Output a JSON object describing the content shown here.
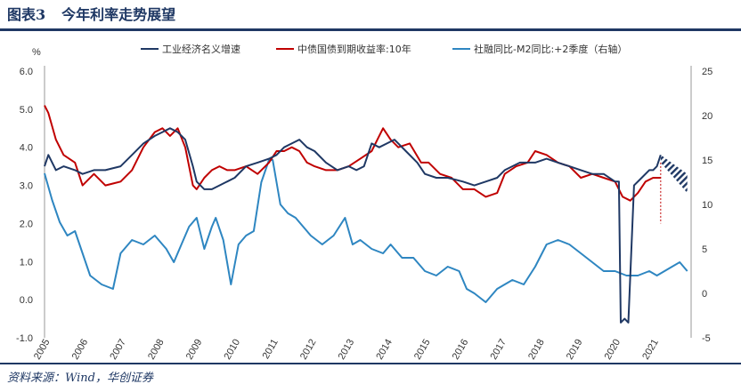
{
  "figure": {
    "number": "图表3",
    "title": "今年利率走势展望",
    "source": "资料来源：Wind，华创证券"
  },
  "colors": {
    "series1": "#1f3864",
    "series2": "#c00000",
    "series3": "#2e86c1",
    "rule": "#1f3864"
  },
  "chart_data": {
    "type": "line",
    "title": "",
    "y_left_unit": "%",
    "y_left": {
      "ylim": [
        -1.0,
        6.0
      ],
      "ticks": [
        "-1.0",
        "0.0",
        "1.0",
        "2.0",
        "3.0",
        "4.0",
        "5.0",
        "6.0"
      ]
    },
    "y_right": {
      "ylim": [
        -5,
        25
      ],
      "ticks": [
        "-5",
        "0",
        "5",
        "10",
        "15",
        "20",
        "25"
      ]
    },
    "x_ticks": [
      "2005",
      "2006",
      "2007",
      "2008",
      "2009",
      "2010",
      "2011",
      "2012",
      "2013",
      "2014",
      "2015",
      "2016",
      "2017",
      "2018",
      "2019",
      "2020",
      "2021"
    ],
    "xlim": [
      2005.0,
      2022.0
    ],
    "grid": false,
    "legend_position": "top",
    "series": [
      {
        "name": "工业经济名义增速",
        "axis": "left",
        "x": [
          2005.0,
          2005.1,
          2005.3,
          2005.5,
          2005.8,
          2006.0,
          2006.3,
          2006.6,
          2007.0,
          2007.3,
          2007.6,
          2007.9,
          2008.1,
          2008.3,
          2008.5,
          2008.7,
          2008.9,
          2009.0,
          2009.2,
          2009.4,
          2009.6,
          2009.8,
          2010.0,
          2010.3,
          2010.6,
          2010.9,
          2011.1,
          2011.3,
          2011.5,
          2011.7,
          2011.9,
          2012.1,
          2012.4,
          2012.7,
          2013.0,
          2013.2,
          2013.4,
          2013.6,
          2013.8,
          2014.0,
          2014.2,
          2014.5,
          2014.8,
          2015.0,
          2015.3,
          2015.6,
          2016.0,
          2016.3,
          2016.6,
          2016.9,
          2017.1,
          2017.5,
          2017.9,
          2018.2,
          2018.5,
          2018.8,
          2019.1,
          2019.4,
          2019.7,
          2020.0,
          2020.1,
          2020.15,
          2020.25,
          2020.35,
          2020.5,
          2020.7,
          2020.9,
          2021.0,
          2021.1,
          2021.2
        ],
        "values": [
          3.5,
          3.8,
          3.4,
          3.5,
          3.4,
          3.3,
          3.4,
          3.4,
          3.5,
          3.8,
          4.1,
          4.3,
          4.4,
          4.5,
          4.4,
          4.2,
          3.5,
          3.1,
          2.9,
          2.9,
          3.0,
          3.1,
          3.2,
          3.5,
          3.6,
          3.7,
          3.8,
          4.0,
          4.1,
          4.2,
          4.0,
          3.9,
          3.6,
          3.4,
          3.5,
          3.4,
          3.5,
          4.1,
          4.0,
          4.1,
          4.2,
          3.9,
          3.6,
          3.3,
          3.2,
          3.2,
          3.1,
          3.0,
          3.1,
          3.2,
          3.4,
          3.6,
          3.6,
          3.7,
          3.6,
          3.5,
          3.4,
          3.3,
          3.3,
          3.1,
          3.1,
          -0.6,
          -0.5,
          -0.6,
          3.0,
          3.2,
          3.4,
          3.4,
          3.5,
          3.8
        ]
      },
      {
        "name": "中债国债到期收益率:10年",
        "axis": "left",
        "x": [
          2005.0,
          2005.1,
          2005.3,
          2005.5,
          2005.8,
          2006.0,
          2006.3,
          2006.6,
          2007.0,
          2007.3,
          2007.6,
          2007.9,
          2008.1,
          2008.3,
          2008.5,
          2008.7,
          2008.9,
          2009.0,
          2009.2,
          2009.4,
          2009.6,
          2009.8,
          2010.0,
          2010.3,
          2010.6,
          2010.9,
          2011.1,
          2011.3,
          2011.5,
          2011.7,
          2011.9,
          2012.1,
          2012.4,
          2012.7,
          2013.0,
          2013.3,
          2013.6,
          2013.8,
          2013.9,
          2014.1,
          2014.3,
          2014.6,
          2014.9,
          2015.1,
          2015.4,
          2015.7,
          2016.0,
          2016.3,
          2016.6,
          2016.9,
          2017.1,
          2017.4,
          2017.7,
          2017.9,
          2018.2,
          2018.5,
          2018.8,
          2019.1,
          2019.4,
          2019.7,
          2020.0,
          2020.2,
          2020.4,
          2020.6,
          2020.8,
          2021.0,
          2021.2
        ],
        "values": [
          5.1,
          4.9,
          4.2,
          3.8,
          3.6,
          3.0,
          3.3,
          3.0,
          3.1,
          3.4,
          4.0,
          4.4,
          4.5,
          4.3,
          4.5,
          4.0,
          3.0,
          2.9,
          3.2,
          3.4,
          3.5,
          3.4,
          3.4,
          3.5,
          3.3,
          3.6,
          3.9,
          3.9,
          4.0,
          3.9,
          3.6,
          3.5,
          3.4,
          3.4,
          3.5,
          3.7,
          3.9,
          4.3,
          4.5,
          4.2,
          4.0,
          4.1,
          3.6,
          3.6,
          3.3,
          3.2,
          2.9,
          2.9,
          2.7,
          2.8,
          3.3,
          3.5,
          3.6,
          3.9,
          3.8,
          3.6,
          3.5,
          3.2,
          3.3,
          3.2,
          3.1,
          2.7,
          2.6,
          2.8,
          3.1,
          3.2,
          3.2
        ]
      },
      {
        "name": "社融同比-M2同比:+2季度（右轴）",
        "axis": "right",
        "x": [
          2005.0,
          2005.2,
          2005.4,
          2005.6,
          2005.8,
          2006.0,
          2006.2,
          2006.5,
          2006.8,
          2007.0,
          2007.3,
          2007.6,
          2007.9,
          2008.2,
          2008.4,
          2008.6,
          2008.8,
          2009.0,
          2009.2,
          2009.4,
          2009.5,
          2009.7,
          2009.9,
          2010.1,
          2010.3,
          2010.5,
          2010.7,
          2010.9,
          2011.0,
          2011.2,
          2011.4,
          2011.6,
          2011.8,
          2012.0,
          2012.3,
          2012.6,
          2012.9,
          2013.1,
          2013.3,
          2013.6,
          2013.9,
          2014.1,
          2014.4,
          2014.7,
          2015.0,
          2015.3,
          2015.6,
          2015.9,
          2016.1,
          2016.3,
          2016.6,
          2016.9,
          2017.1,
          2017.3,
          2017.6,
          2017.9,
          2018.2,
          2018.5,
          2018.8,
          2019.1,
          2019.4,
          2019.7,
          2020.0,
          2020.3,
          2020.6,
          2020.9,
          2021.1,
          2021.3,
          2021.5,
          2021.7,
          2021.9
        ],
        "values": [
          13.5,
          10.5,
          8.0,
          6.5,
          7.0,
          4.5,
          2.0,
          1.0,
          0.5,
          4.5,
          6.0,
          5.5,
          6.5,
          5.0,
          3.5,
          5.5,
          7.5,
          8.5,
          5.0,
          7.5,
          8.5,
          6.0,
          1.0,
          5.5,
          6.5,
          7.0,
          12.5,
          15.0,
          15.0,
          10.0,
          9.0,
          8.5,
          7.5,
          6.5,
          5.5,
          6.5,
          8.5,
          5.5,
          6.0,
          5.0,
          4.5,
          5.5,
          4.0,
          4.0,
          2.5,
          2.0,
          3.0,
          2.5,
          0.5,
          0.0,
          -1.0,
          0.5,
          1.0,
          1.5,
          1.0,
          3.0,
          5.5,
          6.0,
          5.5,
          4.5,
          3.5,
          2.5,
          2.5,
          2.0,
          2.0,
          2.5,
          2.0,
          2.5,
          3.0,
          3.5,
          2.5
        ]
      }
    ],
    "forecast": {
      "series": "工业经济名义增速",
      "x": [
        2021.2,
        2021.9
      ],
      "upper": [
        3.8,
        3.3
      ],
      "lower": [
        3.6,
        2.8
      ]
    }
  }
}
